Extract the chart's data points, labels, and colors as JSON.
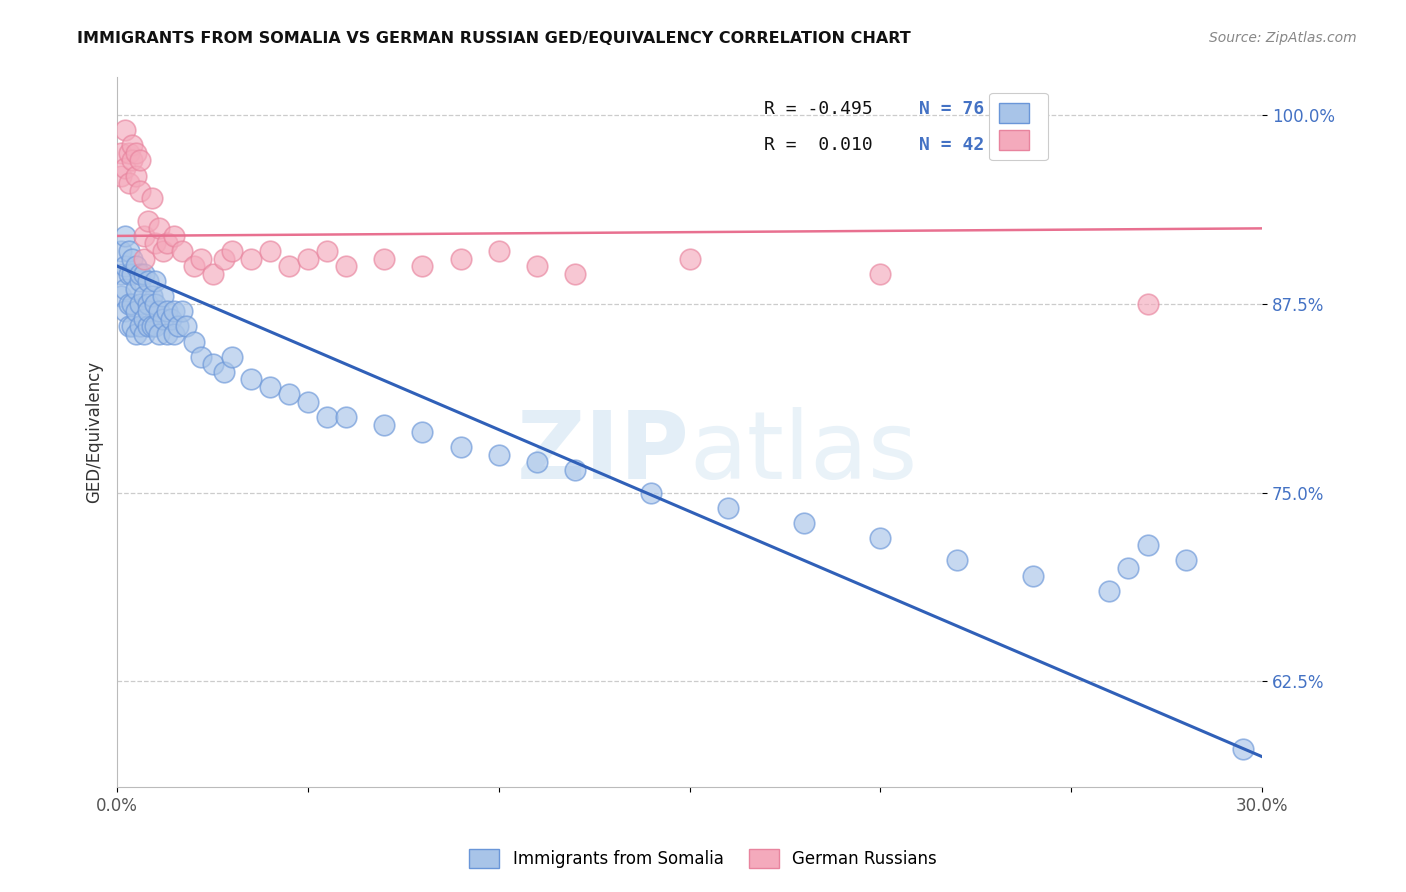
{
  "title": "IMMIGRANTS FROM SOMALIA VS GERMAN RUSSIAN GED/EQUIVALENCY CORRELATION CHART",
  "source": "Source: ZipAtlas.com",
  "ylabel": "GED/Equivalency",
  "legend_labels": [
    "Immigrants from Somalia",
    "German Russians"
  ],
  "xlim": [
    0.0,
    0.3
  ],
  "ylim": [
    0.555,
    1.025
  ],
  "xticks": [
    0.0,
    0.05,
    0.1,
    0.15,
    0.2,
    0.25,
    0.3
  ],
  "xtick_labels": [
    "0.0%",
    "",
    "",
    "",
    "",
    "",
    "30.0%"
  ],
  "yticks": [
    0.625,
    0.75,
    0.875,
    1.0
  ],
  "ytick_labels": [
    "62.5%",
    "75.0%",
    "87.5%",
    "100.0%"
  ],
  "blue_color": "#A8C4E8",
  "blue_edge": "#6A96D8",
  "pink_color": "#F4AABC",
  "pink_edge": "#E8849E",
  "blue_line_color": "#3060B8",
  "pink_line_color": "#E87090",
  "watermark_zip": "ZIP",
  "watermark_atlas": "atlas",
  "legend_r1": "R = -0.495",
  "legend_n1": "N = 76",
  "legend_r2": "R =  0.010",
  "legend_n2": "N = 42",
  "somalia_x": [
    0.001,
    0.001,
    0.001,
    0.002,
    0.002,
    0.002,
    0.002,
    0.003,
    0.003,
    0.003,
    0.003,
    0.004,
    0.004,
    0.004,
    0.004,
    0.005,
    0.005,
    0.005,
    0.005,
    0.006,
    0.006,
    0.006,
    0.006,
    0.007,
    0.007,
    0.007,
    0.007,
    0.008,
    0.008,
    0.008,
    0.008,
    0.009,
    0.009,
    0.01,
    0.01,
    0.01,
    0.011,
    0.011,
    0.012,
    0.012,
    0.013,
    0.013,
    0.014,
    0.015,
    0.015,
    0.016,
    0.017,
    0.018,
    0.02,
    0.022,
    0.025,
    0.028,
    0.03,
    0.035,
    0.04,
    0.045,
    0.05,
    0.055,
    0.06,
    0.07,
    0.08,
    0.09,
    0.1,
    0.11,
    0.12,
    0.14,
    0.16,
    0.18,
    0.2,
    0.22,
    0.24,
    0.26,
    0.265,
    0.27,
    0.28,
    0.295
  ],
  "somalia_y": [
    0.91,
    0.895,
    0.88,
    0.9,
    0.885,
    0.87,
    0.92,
    0.895,
    0.91,
    0.875,
    0.86,
    0.895,
    0.875,
    0.905,
    0.86,
    0.885,
    0.9,
    0.87,
    0.855,
    0.89,
    0.875,
    0.86,
    0.895,
    0.88,
    0.865,
    0.895,
    0.855,
    0.875,
    0.86,
    0.89,
    0.87,
    0.88,
    0.86,
    0.875,
    0.89,
    0.86,
    0.87,
    0.855,
    0.865,
    0.88,
    0.87,
    0.855,
    0.865,
    0.87,
    0.855,
    0.86,
    0.87,
    0.86,
    0.85,
    0.84,
    0.835,
    0.83,
    0.84,
    0.825,
    0.82,
    0.815,
    0.81,
    0.8,
    0.8,
    0.795,
    0.79,
    0.78,
    0.775,
    0.77,
    0.765,
    0.75,
    0.74,
    0.73,
    0.72,
    0.705,
    0.695,
    0.685,
    0.7,
    0.715,
    0.705,
    0.58
  ],
  "german_x": [
    0.001,
    0.001,
    0.002,
    0.002,
    0.003,
    0.003,
    0.004,
    0.004,
    0.005,
    0.005,
    0.006,
    0.006,
    0.007,
    0.007,
    0.008,
    0.009,
    0.01,
    0.011,
    0.012,
    0.013,
    0.015,
    0.017,
    0.02,
    0.022,
    0.025,
    0.028,
    0.03,
    0.035,
    0.04,
    0.045,
    0.05,
    0.055,
    0.06,
    0.07,
    0.08,
    0.09,
    0.1,
    0.11,
    0.12,
    0.15,
    0.2,
    0.27
  ],
  "german_y": [
    0.975,
    0.96,
    0.99,
    0.965,
    0.975,
    0.955,
    0.98,
    0.97,
    0.96,
    0.975,
    0.95,
    0.97,
    0.92,
    0.905,
    0.93,
    0.945,
    0.915,
    0.925,
    0.91,
    0.915,
    0.92,
    0.91,
    0.9,
    0.905,
    0.895,
    0.905,
    0.91,
    0.905,
    0.91,
    0.9,
    0.905,
    0.91,
    0.9,
    0.905,
    0.9,
    0.905,
    0.91,
    0.9,
    0.895,
    0.905,
    0.895,
    0.875
  ],
  "blue_trend_x": [
    0.0,
    0.3
  ],
  "blue_trend_y": [
    0.9,
    0.575
  ],
  "pink_trend_x": [
    0.0,
    0.3
  ],
  "pink_trend_y": [
    0.92,
    0.925
  ]
}
